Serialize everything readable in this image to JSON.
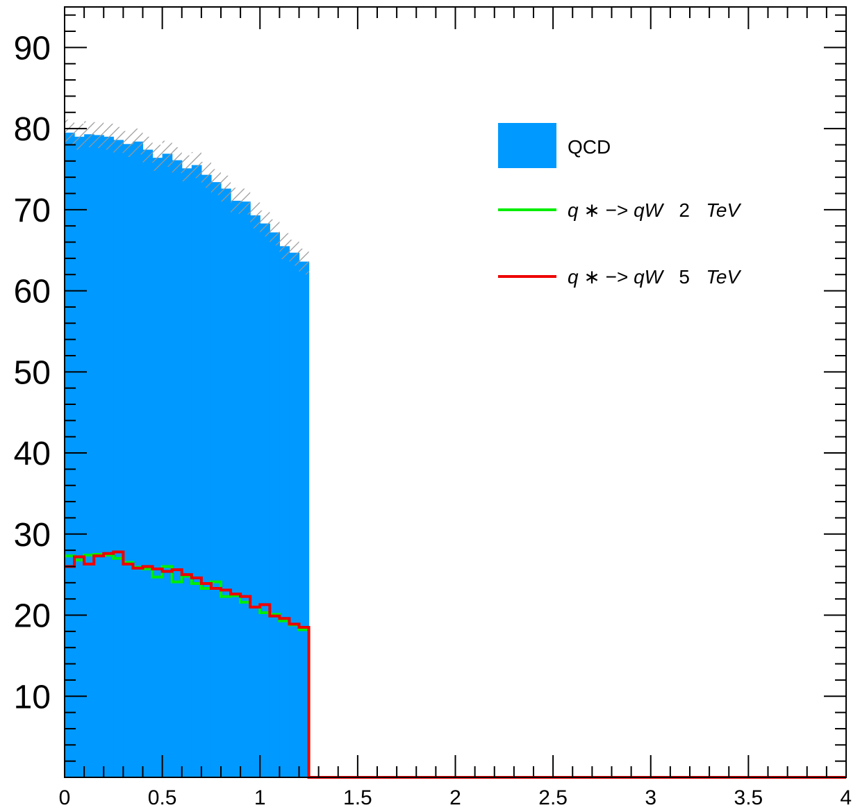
{
  "chart_data": {
    "type": "bar",
    "histogram": true,
    "xlim": [
      0,
      4
    ],
    "ylim": [
      0,
      95
    ],
    "x_ticks": [
      "0",
      "0.5",
      "1",
      "1.5",
      "2",
      "2.5",
      "3",
      "3.5",
      "4"
    ],
    "y_ticks": [
      "10",
      "20",
      "30",
      "40",
      "50",
      "60",
      "70",
      "80",
      "90"
    ],
    "bin_width": 0.05,
    "legend_position": "top-right",
    "series": [
      {
        "name": "QCD",
        "style": "filled",
        "color": "#0099ff",
        "values": [
          79.5,
          79.0,
          79.3,
          79.2,
          79.0,
          78.6,
          78.1,
          78.4,
          77.4,
          76.4,
          76.9,
          76.1,
          75.1,
          75.5,
          74.3,
          73.4,
          72.6,
          71.1,
          71.0,
          69.3,
          68.3,
          67.2,
          65.5,
          64.7,
          63.6
        ],
        "uncertainty": [
          1.6,
          1.6,
          1.6,
          1.6,
          1.6,
          1.6,
          1.6,
          1.6,
          1.6,
          1.6,
          1.6,
          1.6,
          1.6,
          1.6,
          1.6,
          1.6,
          1.6,
          1.6,
          1.6,
          1.6,
          1.6,
          1.6,
          1.6,
          1.6,
          1.6
        ]
      },
      {
        "name_parts": [
          "q",
          "∗",
          "−>",
          "qW",
          "2",
          "TeV"
        ],
        "style": "step",
        "color": "#00ee00",
        "values": [
          27.3,
          26.8,
          27.4,
          27.5,
          27.4,
          27.0,
          26.5,
          25.9,
          25.7,
          24.7,
          26.0,
          24.1,
          24.8,
          23.9,
          23.3,
          24.1,
          22.3,
          22.4,
          21.6,
          21.0,
          20.3,
          20.1,
          19.3,
          18.8,
          18.2
        ]
      },
      {
        "name_parts": [
          "q",
          "∗",
          "−>",
          "qW",
          "5",
          "TeV"
        ],
        "style": "step",
        "color": "#ee0000",
        "values": [
          26.0,
          27.2,
          26.3,
          27.3,
          27.6,
          27.8,
          26.3,
          25.8,
          26.0,
          25.7,
          25.4,
          25.6,
          25.0,
          24.6,
          23.9,
          23.3,
          23.1,
          22.6,
          22.3,
          21.0,
          21.3,
          19.9,
          19.6,
          18.9,
          18.5
        ]
      }
    ]
  }
}
